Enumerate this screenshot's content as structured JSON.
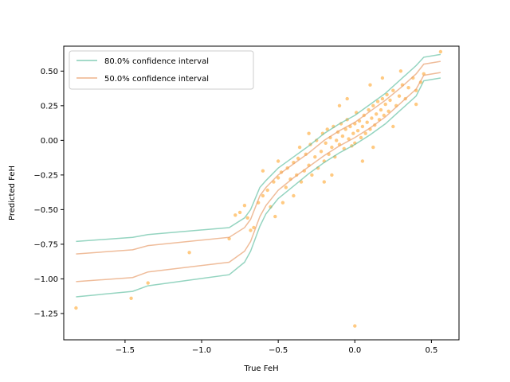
{
  "chart_data": {
    "type": "scatter",
    "title": "",
    "xlabel": "True FeH",
    "ylabel": "Predicted FeH",
    "xlim": [
      -1.9,
      0.68
    ],
    "ylim": [
      -1.44,
      0.68
    ],
    "xticks": [
      -1.5,
      -1.0,
      -0.5,
      0.0,
      0.5
    ],
    "xtick_labels": [
      "−1.5",
      "−1.0",
      "−0.5",
      "0.0",
      "0.5"
    ],
    "yticks": [
      -1.25,
      -1.0,
      -0.75,
      -0.5,
      -0.25,
      0.0,
      0.25,
      0.5
    ],
    "ytick_labels": [
      "−1.25",
      "−1.00",
      "−0.75",
      "−0.50",
      "−0.25",
      "0.00",
      "0.25",
      "0.50"
    ],
    "legend_position": "upper-left",
    "grid": false,
    "series": [
      {
        "name": "80.0% confidence interval",
        "kind": "band",
        "color": "#66c2a5",
        "x": [
          -1.82,
          -1.45,
          -1.35,
          -0.82,
          -0.72,
          -0.68,
          -0.62,
          -0.58,
          -0.5,
          -0.4,
          -0.3,
          -0.2,
          -0.1,
          0.0,
          0.1,
          0.2,
          0.3,
          0.4,
          0.45,
          0.56
        ],
        "upper": [
          -0.73,
          -0.7,
          -0.68,
          -0.63,
          -0.56,
          -0.5,
          -0.34,
          -0.29,
          -0.2,
          -0.12,
          -0.04,
          0.05,
          0.12,
          0.18,
          0.26,
          0.34,
          0.44,
          0.54,
          0.6,
          0.62
        ],
        "lower": [
          -1.13,
          -1.09,
          -1.05,
          -0.97,
          -0.88,
          -0.8,
          -0.62,
          -0.53,
          -0.42,
          -0.33,
          -0.24,
          -0.16,
          -0.09,
          -0.03,
          0.04,
          0.12,
          0.22,
          0.32,
          0.43,
          0.45
        ]
      },
      {
        "name": "50.0% confidence interval",
        "kind": "band",
        "color": "#e8a06f",
        "x": [
          -1.82,
          -1.45,
          -1.35,
          -0.82,
          -0.72,
          -0.68,
          -0.62,
          -0.58,
          -0.5,
          -0.4,
          -0.3,
          -0.2,
          -0.1,
          0.0,
          0.1,
          0.2,
          0.3,
          0.4,
          0.45,
          0.56
        ],
        "upper": [
          -0.82,
          -0.79,
          -0.76,
          -0.7,
          -0.63,
          -0.57,
          -0.4,
          -0.34,
          -0.25,
          -0.17,
          -0.09,
          0.0,
          0.07,
          0.13,
          0.21,
          0.29,
          0.38,
          0.48,
          0.55,
          0.57
        ],
        "lower": [
          -1.02,
          -0.99,
          -0.95,
          -0.88,
          -0.8,
          -0.73,
          -0.55,
          -0.47,
          -0.36,
          -0.27,
          -0.19,
          -0.11,
          -0.04,
          0.02,
          0.09,
          0.17,
          0.27,
          0.37,
          0.47,
          0.49
        ]
      },
      {
        "kind": "points",
        "color": "#ff9f1c",
        "points": [
          [
            -1.82,
            -1.21
          ],
          [
            -1.46,
            -1.14
          ],
          [
            -1.35,
            -1.03
          ],
          [
            -1.08,
            -0.81
          ],
          [
            -0.82,
            -0.71
          ],
          [
            -0.78,
            -0.54
          ],
          [
            -0.75,
            -0.52
          ],
          [
            -0.72,
            -0.47
          ],
          [
            -0.7,
            -0.56
          ],
          [
            -0.68,
            -0.65
          ],
          [
            -0.66,
            -0.63
          ],
          [
            -0.63,
            -0.45
          ],
          [
            -0.6,
            -0.4
          ],
          [
            -0.57,
            -0.36
          ],
          [
            -0.55,
            -0.48
          ],
          [
            -0.53,
            -0.3
          ],
          [
            -0.5,
            -0.27
          ],
          [
            -0.5,
            -0.15
          ],
          [
            -0.48,
            -0.23
          ],
          [
            -0.47,
            -0.45
          ],
          [
            -0.45,
            -0.34
          ],
          [
            -0.44,
            -0.2
          ],
          [
            -0.42,
            -0.28
          ],
          [
            -0.4,
            -0.16
          ],
          [
            -0.38,
            -0.25
          ],
          [
            -0.37,
            -0.13
          ],
          [
            -0.36,
            -0.05
          ],
          [
            -0.35,
            -0.3
          ],
          [
            -0.33,
            -0.22
          ],
          [
            -0.32,
            -0.1
          ],
          [
            -0.3,
            -0.18
          ],
          [
            -0.29,
            -0.03
          ],
          [
            -0.28,
            -0.25
          ],
          [
            -0.26,
            -0.12
          ],
          [
            -0.25,
            0.0
          ],
          [
            -0.24,
            -0.2
          ],
          [
            -0.22,
            -0.08
          ],
          [
            -0.21,
            0.05
          ],
          [
            -0.2,
            -0.15
          ],
          [
            -0.19,
            -0.02
          ],
          [
            -0.18,
            0.08
          ],
          [
            -0.17,
            -0.1
          ],
          [
            -0.16,
            0.02
          ],
          [
            -0.15,
            -0.05
          ],
          [
            -0.14,
            0.1
          ],
          [
            -0.13,
            -0.12
          ],
          [
            -0.12,
            0.0
          ],
          [
            -0.11,
            0.06
          ],
          [
            -0.1,
            -0.03
          ],
          [
            -0.09,
            0.12
          ],
          [
            -0.08,
            0.03
          ],
          [
            -0.07,
            -0.06
          ],
          [
            -0.06,
            0.08
          ],
          [
            -0.05,
            0.15
          ],
          [
            -0.04,
            0.01
          ],
          [
            -0.03,
            0.1
          ],
          [
            -0.02,
            -0.04
          ],
          [
            -0.01,
            0.05
          ],
          [
            0.0,
            0.12
          ],
          [
            0.0,
            -0.02
          ],
          [
            0.01,
            0.2
          ],
          [
            0.02,
            0.07
          ],
          [
            0.03,
            0.14
          ],
          [
            0.04,
            0.02
          ],
          [
            0.05,
            0.1
          ],
          [
            0.06,
            0.18
          ],
          [
            0.07,
            0.05
          ],
          [
            0.08,
            0.13
          ],
          [
            0.09,
            0.22
          ],
          [
            0.1,
            0.08
          ],
          [
            0.11,
            0.16
          ],
          [
            0.12,
            0.25
          ],
          [
            0.13,
            0.11
          ],
          [
            0.14,
            0.19
          ],
          [
            0.15,
            0.28
          ],
          [
            0.16,
            0.15
          ],
          [
            0.17,
            0.22
          ],
          [
            0.18,
            0.3
          ],
          [
            0.19,
            0.18
          ],
          [
            0.2,
            0.26
          ],
          [
            0.21,
            0.33
          ],
          [
            0.22,
            0.21
          ],
          [
            0.23,
            0.29
          ],
          [
            0.25,
            0.36
          ],
          [
            0.27,
            0.25
          ],
          [
            0.29,
            0.32
          ],
          [
            0.31,
            0.4
          ],
          [
            0.33,
            0.3
          ],
          [
            0.35,
            0.38
          ],
          [
            0.38,
            0.45
          ],
          [
            0.4,
            0.36
          ],
          [
            0.43,
            0.42
          ],
          [
            0.45,
            0.48
          ],
          [
            0.56,
            0.64
          ],
          [
            -0.05,
            0.3
          ],
          [
            0.05,
            -0.15
          ],
          [
            -0.1,
            0.25
          ],
          [
            0.12,
            -0.05
          ],
          [
            -0.4,
            -0.4
          ],
          [
            -0.3,
            0.05
          ],
          [
            0.0,
            -1.34
          ],
          [
            0.1,
            0.4
          ],
          [
            -0.2,
            -0.3
          ],
          [
            0.25,
            0.1
          ],
          [
            0.3,
            0.5
          ],
          [
            -0.6,
            -0.22
          ],
          [
            -0.52,
            -0.55
          ],
          [
            0.4,
            0.26
          ],
          [
            -0.15,
            -0.25
          ],
          [
            0.18,
            0.45
          ]
        ]
      }
    ]
  }
}
